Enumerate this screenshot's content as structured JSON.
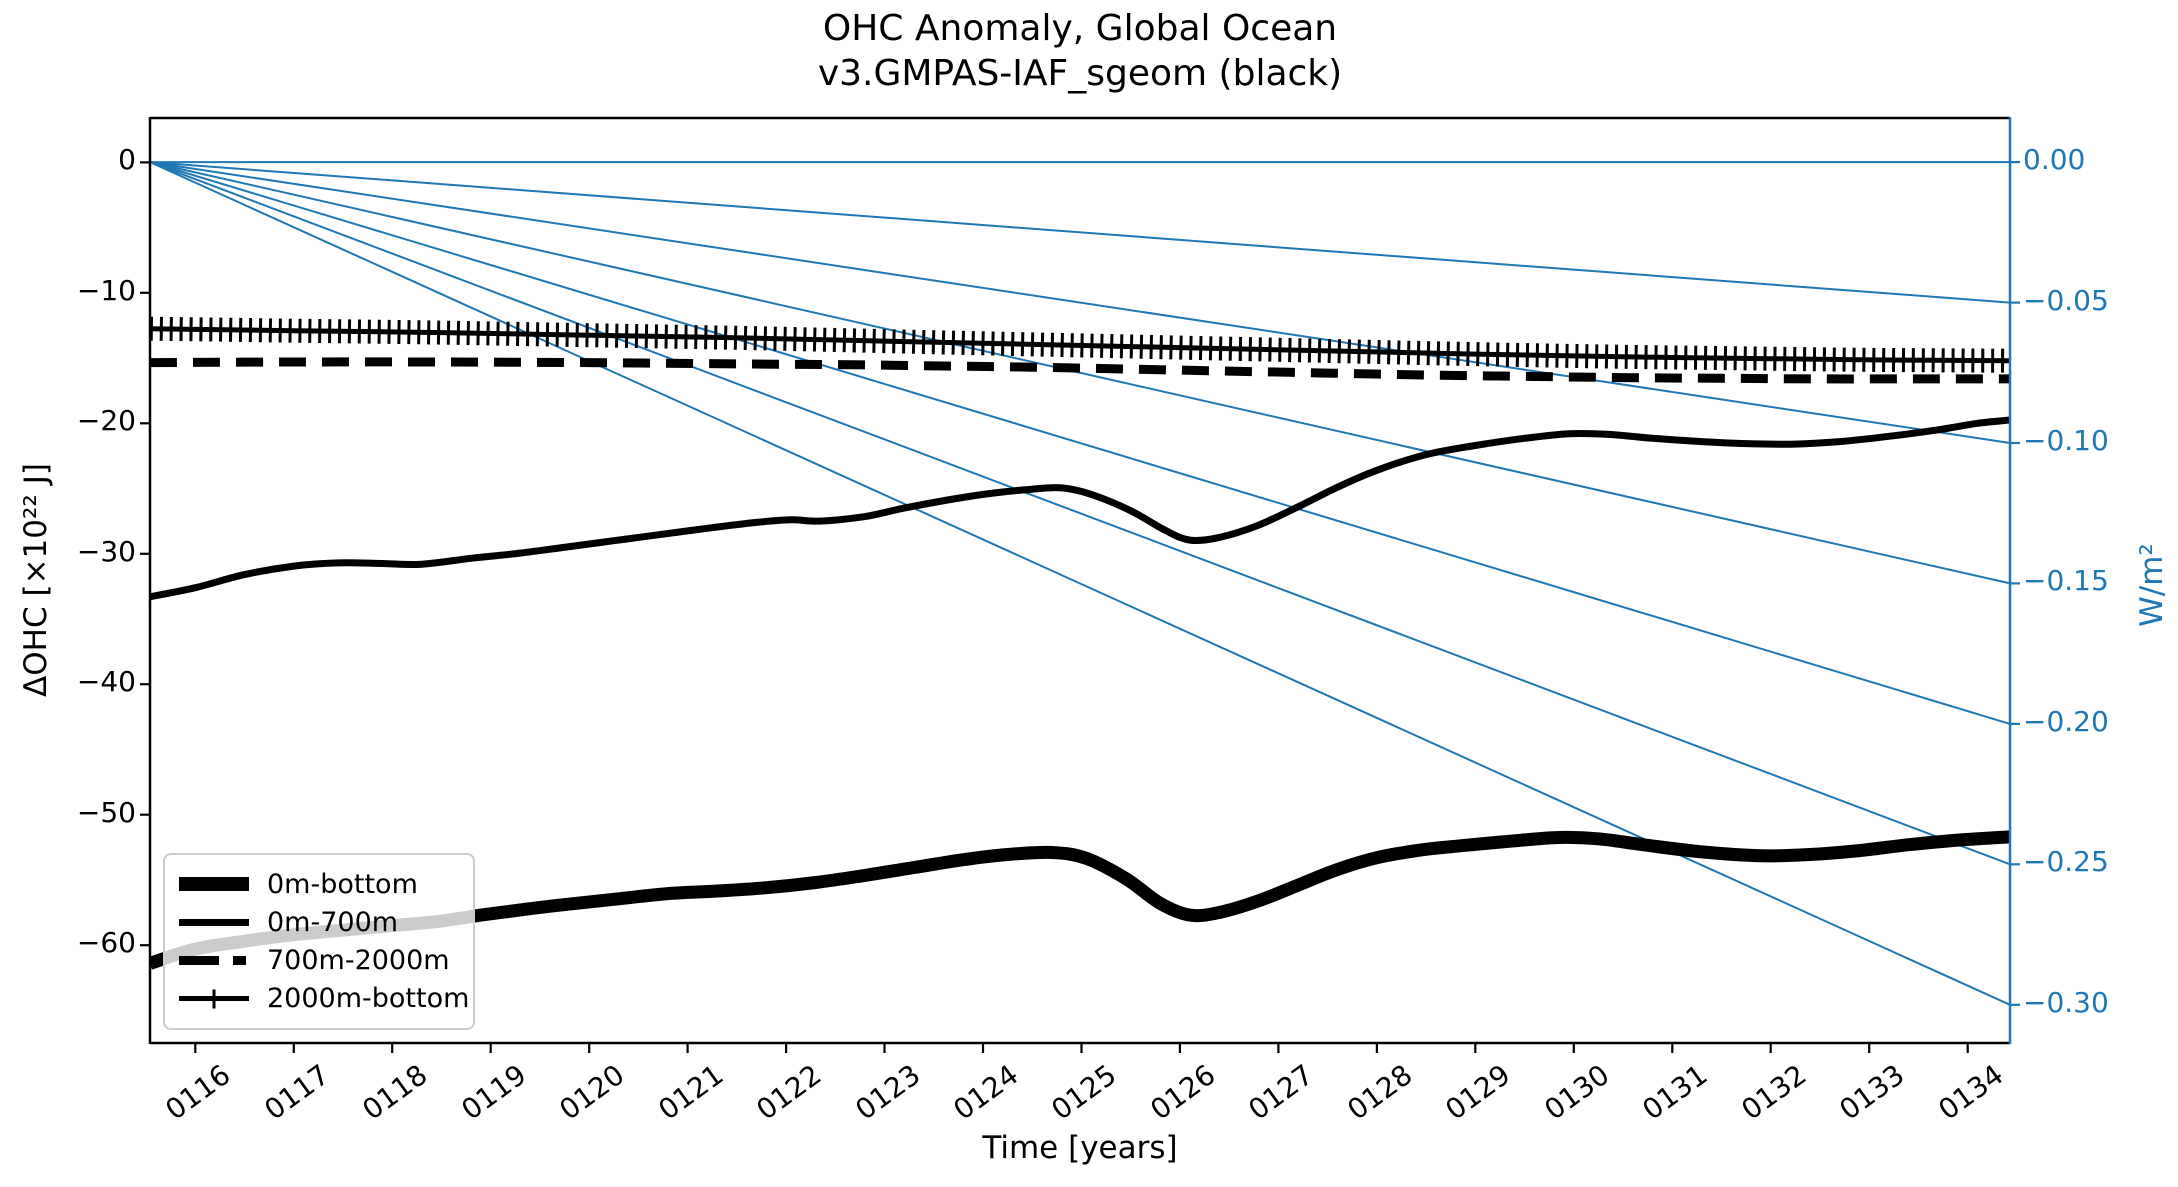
{
  "title": {
    "line1": "OHC Anomaly, Global Ocean",
    "line2": "v3.GMPAS-IAF_sgeom (black)"
  },
  "colors": {
    "accent_blue": "#1f77b4",
    "series_black": "#000000",
    "legend_border": "#cccccc"
  },
  "axes": {
    "x": {
      "label": "Time [years]",
      "range": [
        115.54,
        134.43
      ],
      "ticks": [
        {
          "v": 116,
          "label": "0116"
        },
        {
          "v": 117,
          "label": "0117"
        },
        {
          "v": 118,
          "label": "0118"
        },
        {
          "v": 119,
          "label": "0119"
        },
        {
          "v": 120,
          "label": "0120"
        },
        {
          "v": 121,
          "label": "0121"
        },
        {
          "v": 122,
          "label": "0122"
        },
        {
          "v": 123,
          "label": "0123"
        },
        {
          "v": 124,
          "label": "0124"
        },
        {
          "v": 125,
          "label": "0125"
        },
        {
          "v": 126,
          "label": "0126"
        },
        {
          "v": 127,
          "label": "0127"
        },
        {
          "v": 128,
          "label": "0128"
        },
        {
          "v": 129,
          "label": "0129"
        },
        {
          "v": 130,
          "label": "0130"
        },
        {
          "v": 131,
          "label": "0131"
        },
        {
          "v": 132,
          "label": "0132"
        },
        {
          "v": 133,
          "label": "0133"
        },
        {
          "v": 134,
          "label": "0134"
        }
      ]
    },
    "y_left": {
      "label": "ΔOHC [×10²² J]",
      "range": [
        3.4,
        -67.5
      ],
      "ticks": [
        {
          "v": 0,
          "label": "0"
        },
        {
          "v": -10,
          "label": "−10"
        },
        {
          "v": -20,
          "label": "−20"
        },
        {
          "v": -30,
          "label": "−30"
        },
        {
          "v": -40,
          "label": "−40"
        },
        {
          "v": -50,
          "label": "−50"
        },
        {
          "v": -60,
          "label": "−60"
        }
      ]
    },
    "y_right": {
      "label": "W/m²",
      "range": [
        0.0157,
        -0.3136
      ],
      "ticks": [
        {
          "v": 0.0,
          "label": "0.00"
        },
        {
          "v": -0.05,
          "label": "−0.05"
        },
        {
          "v": -0.1,
          "label": "−0.10"
        },
        {
          "v": -0.15,
          "label": "−0.15"
        },
        {
          "v": -0.2,
          "label": "−0.20"
        },
        {
          "v": -0.25,
          "label": "−0.25"
        },
        {
          "v": -0.3,
          "label": "−0.30"
        }
      ]
    }
  },
  "legend": {
    "items": [
      {
        "label": "0m-bottom",
        "line": "thick-solid"
      },
      {
        "label": "0m-700m",
        "line": "solid"
      },
      {
        "label": "700m-2000m",
        "line": "dashed"
      },
      {
        "label": "2000m-bottom",
        "line": "plus-marker"
      }
    ]
  },
  "chart_data": {
    "type": "line",
    "xlabel": "Time [years]",
    "ylabel_left": "ΔOHC [×10²² J]",
    "ylabel_right": "W/m²",
    "reference_lines_wm2": {
      "description": "thin blue lines from (x-min, 0) to right spine at each W/m2 tick",
      "origin_year": 115.54,
      "end_year": 134.43,
      "levels": [
        0.0,
        -0.05,
        -0.1,
        -0.15,
        -0.2,
        -0.25,
        -0.3
      ]
    },
    "series": [
      {
        "name": "0m-bottom",
        "style": "solid",
        "width": 13,
        "points": [
          [
            115.54,
            -61.4
          ],
          [
            116.0,
            -60.3
          ],
          [
            116.5,
            -59.7
          ],
          [
            117.0,
            -59.2
          ],
          [
            117.5,
            -58.85
          ],
          [
            118.0,
            -58.5
          ],
          [
            118.45,
            -58.2
          ],
          [
            118.9,
            -57.7
          ],
          [
            119.35,
            -57.25
          ],
          [
            119.8,
            -56.85
          ],
          [
            120.3,
            -56.45
          ],
          [
            120.8,
            -56.05
          ],
          [
            121.3,
            -55.85
          ],
          [
            121.8,
            -55.6
          ],
          [
            122.3,
            -55.2
          ],
          [
            122.8,
            -54.65
          ],
          [
            123.3,
            -54.05
          ],
          [
            123.8,
            -53.45
          ],
          [
            124.25,
            -53.05
          ],
          [
            124.7,
            -52.9
          ],
          [
            125.05,
            -53.35
          ],
          [
            125.45,
            -54.9
          ],
          [
            125.8,
            -56.8
          ],
          [
            126.1,
            -57.7
          ],
          [
            126.4,
            -57.5
          ],
          [
            126.8,
            -56.6
          ],
          [
            127.2,
            -55.4
          ],
          [
            127.6,
            -54.2
          ],
          [
            128.0,
            -53.3
          ],
          [
            128.45,
            -52.7
          ],
          [
            128.9,
            -52.35
          ],
          [
            129.4,
            -52.0
          ],
          [
            129.85,
            -51.75
          ],
          [
            130.25,
            -51.85
          ],
          [
            130.7,
            -52.3
          ],
          [
            131.3,
            -52.85
          ],
          [
            131.9,
            -53.15
          ],
          [
            132.4,
            -53.05
          ],
          [
            132.9,
            -52.75
          ],
          [
            133.4,
            -52.3
          ],
          [
            133.9,
            -51.95
          ],
          [
            134.43,
            -51.7
          ]
        ]
      },
      {
        "name": "0m-700m",
        "style": "solid",
        "width": 7,
        "points": [
          [
            115.54,
            -33.3
          ],
          [
            116.0,
            -32.6
          ],
          [
            116.5,
            -31.6
          ],
          [
            117.0,
            -30.95
          ],
          [
            117.45,
            -30.7
          ],
          [
            117.9,
            -30.75
          ],
          [
            118.3,
            -30.8
          ],
          [
            118.8,
            -30.35
          ],
          [
            119.3,
            -29.95
          ],
          [
            119.8,
            -29.45
          ],
          [
            120.25,
            -29.0
          ],
          [
            120.7,
            -28.55
          ],
          [
            121.2,
            -28.05
          ],
          [
            121.7,
            -27.6
          ],
          [
            122.05,
            -27.4
          ],
          [
            122.35,
            -27.5
          ],
          [
            122.8,
            -27.15
          ],
          [
            123.2,
            -26.5
          ],
          [
            123.7,
            -25.8
          ],
          [
            124.1,
            -25.35
          ],
          [
            124.5,
            -25.05
          ],
          [
            124.8,
            -24.95
          ],
          [
            125.1,
            -25.45
          ],
          [
            125.5,
            -26.7
          ],
          [
            125.85,
            -28.2
          ],
          [
            126.1,
            -28.95
          ],
          [
            126.4,
            -28.75
          ],
          [
            126.8,
            -27.8
          ],
          [
            127.2,
            -26.4
          ],
          [
            127.6,
            -24.9
          ],
          [
            128.0,
            -23.6
          ],
          [
            128.5,
            -22.4
          ],
          [
            129.0,
            -21.7
          ],
          [
            129.5,
            -21.15
          ],
          [
            129.95,
            -20.8
          ],
          [
            130.35,
            -20.85
          ],
          [
            130.8,
            -21.15
          ],
          [
            131.3,
            -21.4
          ],
          [
            131.7,
            -21.55
          ],
          [
            132.2,
            -21.6
          ],
          [
            132.7,
            -21.4
          ],
          [
            133.2,
            -21.0
          ],
          [
            133.7,
            -20.5
          ],
          [
            134.1,
            -20.0
          ],
          [
            134.43,
            -19.75
          ]
        ]
      },
      {
        "name": "700m-2000m",
        "style": "dashed",
        "width": 9,
        "points": [
          [
            115.54,
            -15.35
          ],
          [
            117.0,
            -15.3
          ],
          [
            118.5,
            -15.3
          ],
          [
            120.0,
            -15.35
          ],
          [
            121.5,
            -15.45
          ],
          [
            122.5,
            -15.5
          ],
          [
            123.5,
            -15.6
          ],
          [
            124.5,
            -15.7
          ],
          [
            125.5,
            -15.85
          ],
          [
            126.5,
            -16.0
          ],
          [
            127.5,
            -16.15
          ],
          [
            128.5,
            -16.3
          ],
          [
            129.5,
            -16.4
          ],
          [
            130.5,
            -16.5
          ],
          [
            131.5,
            -16.55
          ],
          [
            132.5,
            -16.6
          ],
          [
            133.5,
            -16.6
          ],
          [
            134.43,
            -16.6
          ]
        ]
      },
      {
        "name": "2000m-bottom",
        "style": "plus",
        "width": 5,
        "marker": "+",
        "points": [
          [
            115.54,
            -12.75
          ],
          [
            117.0,
            -12.9
          ],
          [
            118.5,
            -13.05
          ],
          [
            120.0,
            -13.25
          ],
          [
            121.5,
            -13.45
          ],
          [
            123.0,
            -13.7
          ],
          [
            124.5,
            -13.95
          ],
          [
            126.0,
            -14.2
          ],
          [
            127.5,
            -14.45
          ],
          [
            129.0,
            -14.7
          ],
          [
            130.5,
            -14.9
          ],
          [
            132.0,
            -15.05
          ],
          [
            133.2,
            -15.15
          ],
          [
            134.43,
            -15.2
          ]
        ]
      }
    ]
  }
}
